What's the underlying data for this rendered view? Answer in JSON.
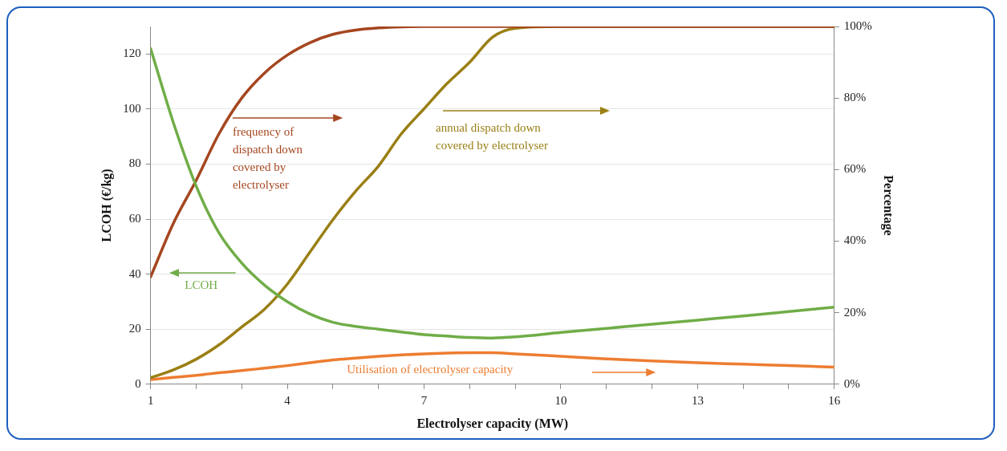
{
  "chart_data": {
    "type": "line",
    "xlabel": "Electrolyser capacity (MW)",
    "ylabel": "LCOH (€/kg)",
    "y2label": "Percentage",
    "x": [
      1,
      1.5,
      2,
      2.5,
      3,
      3.5,
      4,
      4.5,
      5,
      5.5,
      6,
      6.5,
      7,
      7.5,
      8,
      8.5,
      9,
      10,
      11,
      12,
      13,
      14,
      15,
      16
    ],
    "series": [
      {
        "color": "#70ad47",
        "values": [
          122,
          95,
          72,
          55,
          44,
          36,
          30,
          25.5,
          22.5,
          21,
          20,
          19,
          18,
          17.5,
          17,
          16.8,
          17.2,
          18.8,
          20.3,
          21.8,
          23.3,
          24.8,
          26.4,
          28
        ]
      },
      {
        "color": "#a5461f",
        "axis": "y2",
        "values": [
          30,
          45,
          57,
          70,
          80,
          87,
          92,
          95.5,
          97.8,
          99,
          99.6,
          99.9,
          100,
          100,
          100,
          100,
          100,
          100,
          100,
          100,
          100,
          100,
          100,
          100
        ]
      },
      {
        "color": "#9a7f14",
        "axis": "y2",
        "values": [
          1.8,
          4,
          7,
          11,
          16,
          21,
          28,
          37,
          46,
          54,
          61,
          70,
          77,
          84,
          90,
          97,
          99.5,
          100,
          100,
          100,
          100,
          100,
          100,
          100
        ]
      },
      {
        "color": "#ed7d31",
        "axis": "y2",
        "values": [
          1.3,
          1.9,
          2.5,
          3.2,
          3.8,
          4.5,
          5.2,
          6,
          6.8,
          7.3,
          7.8,
          8.2,
          8.5,
          8.7,
          8.8,
          8.8,
          8.5,
          7.8,
          7.1,
          6.5,
          6,
          5.6,
          5.2,
          4.8
        ]
      }
    ],
    "annotations": [
      "LCOH",
      "frequency of\ndispatch down\ncovered by\nelectrolyser",
      "annual dispatch down\ncovered by electrolyser",
      "Utilisation of electrolyser capacity"
    ],
    "xlim": [
      1,
      16
    ],
    "xticks": [
      1,
      {
        "value": 2,
        "label": null
      },
      {
        "value": 3,
        "label": null
      },
      4,
      {
        "value": 5,
        "label": null
      },
      {
        "value": 6,
        "label": null
      },
      7,
      {
        "value": 8,
        "label": null
      },
      {
        "value": 9,
        "label": null
      },
      10,
      {
        "value": 11,
        "label": null
      },
      {
        "value": 12,
        "label": null
      },
      13,
      {
        "value": 14,
        "label": null
      },
      {
        "value": 15,
        "label": null
      },
      16
    ],
    "ylim": [
      0,
      130
    ],
    "yticks": [
      0,
      20,
      40,
      60,
      80,
      100,
      120
    ],
    "y2lim": [
      0,
      100
    ],
    "y2ticks": [
      {
        "value": 0,
        "label": "0%"
      },
      {
        "value": 20,
        "label": "20%"
      },
      {
        "value": 40,
        "label": "40%"
      },
      {
        "value": 60,
        "label": "60%"
      },
      {
        "value": 80,
        "label": "80%"
      },
      {
        "value": 100,
        "label": "100%"
      }
    ],
    "grid": "y",
    "legend": false,
    "marker": "none",
    "line_style": "solid"
  }
}
